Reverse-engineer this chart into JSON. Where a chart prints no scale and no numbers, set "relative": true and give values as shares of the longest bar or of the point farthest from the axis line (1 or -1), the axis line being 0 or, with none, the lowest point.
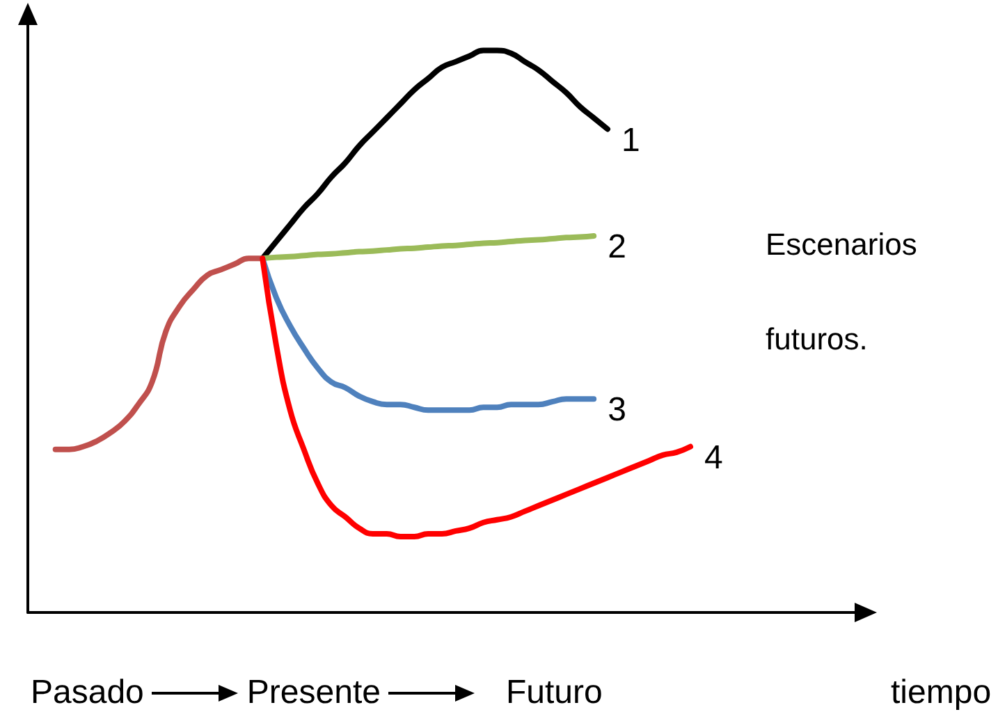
{
  "chart_data": {
    "type": "line",
    "relative": true,
    "xlabel": "tiempo",
    "annotations": [
      "Escenarios futuros.",
      "Pasado",
      "Presente",
      "Futuro"
    ],
    "categories": [
      null,
      null,
      null,
      null,
      null,
      null,
      null,
      null,
      null,
      null,
      null,
      null,
      null,
      null,
      null,
      null,
      null,
      null,
      null,
      null,
      null,
      null,
      null,
      null,
      null,
      null,
      null,
      null,
      null,
      null,
      null,
      null,
      null,
      null,
      null,
      null,
      null,
      null,
      null,
      null,
      null,
      null,
      null,
      null,
      null,
      null,
      null,
      null,
      null,
      null,
      null,
      null,
      null,
      null,
      null,
      null,
      null,
      null,
      null,
      null,
      null
    ],
    "series": [
      {
        "color": "#c0504d",
        "values": [
          null,
          null,
          0.29,
          0.29,
          0.295,
          0.305,
          0.32,
          0.34,
          0.37,
          0.41,
          0.5,
          0.545,
          0.575,
          0.6,
          0.61,
          0.62,
          0.63,
          0.63,
          null,
          null,
          null,
          null,
          null,
          null,
          null,
          null,
          null,
          null,
          null,
          null,
          null,
          null,
          null,
          null,
          null,
          null,
          null,
          null,
          null,
          null,
          null,
          null,
          null,
          null,
          null,
          null,
          null,
          null,
          null,
          null,
          null,
          null,
          null,
          null,
          null,
          null,
          null,
          null,
          null,
          null,
          null
        ]
      },
      {
        "name": "1",
        "color": "#000000",
        "values": [
          null,
          null,
          null,
          null,
          null,
          null,
          null,
          null,
          null,
          null,
          null,
          null,
          null,
          null,
          null,
          null,
          null,
          0.63,
          0.66,
          0.69,
          0.72,
          0.745,
          0.775,
          0.8,
          0.83,
          0.855,
          0.88,
          0.905,
          0.93,
          0.95,
          0.97,
          0.98,
          0.99,
          1,
          1,
          0.995,
          0.98,
          0.965,
          0.945,
          0.925,
          0.9,
          0.88,
          0.86,
          null,
          null,
          null,
          null,
          null,
          null,
          null,
          null,
          null,
          null,
          null,
          null,
          null,
          null,
          null,
          null,
          null,
          null
        ]
      },
      {
        "name": "2",
        "color": "#9bbb59",
        "values": [
          null,
          null,
          null,
          null,
          null,
          null,
          null,
          null,
          null,
          null,
          null,
          null,
          null,
          null,
          null,
          null,
          null,
          0.63,
          0.632,
          0.633,
          0.635,
          0.637,
          0.638,
          0.64,
          0.642,
          0.643,
          0.645,
          0.647,
          0.648,
          0.65,
          0.652,
          0.653,
          0.655,
          0.657,
          0.658,
          0.66,
          0.662,
          0.663,
          0.665,
          0.667,
          0.668,
          0.67,
          null,
          null,
          null,
          null,
          null,
          null,
          null,
          null,
          null,
          null,
          null,
          null,
          null,
          null,
          null,
          null,
          null,
          null,
          null
        ]
      },
      {
        "name": "3",
        "color": "#4f81bd",
        "values": [
          null,
          null,
          null,
          null,
          null,
          null,
          null,
          null,
          null,
          null,
          null,
          null,
          null,
          null,
          null,
          null,
          null,
          0.63,
          0.56,
          0.51,
          0.47,
          0.435,
          0.41,
          0.4,
          0.385,
          0.375,
          0.37,
          0.37,
          0.365,
          0.36,
          0.36,
          0.36,
          0.36,
          0.365,
          0.365,
          0.37,
          0.37,
          0.37,
          0.375,
          0.38,
          0.38,
          0.38,
          null,
          null,
          null,
          null,
          null,
          null,
          null,
          null,
          null,
          null,
          null,
          null,
          null,
          null,
          null,
          null,
          null,
          null,
          null
        ]
      },
      {
        "name": "4",
        "color": "#ff0000",
        "values": [
          null,
          null,
          null,
          null,
          null,
          null,
          null,
          null,
          null,
          null,
          null,
          null,
          null,
          null,
          null,
          null,
          null,
          0.63,
          0.475,
          0.36,
          0.29,
          0.23,
          0.19,
          0.17,
          0.15,
          0.14,
          0.14,
          0.135,
          0.135,
          0.14,
          0.14,
          0.145,
          0.15,
          0.16,
          0.165,
          0.17,
          0.18,
          0.19,
          0.2,
          0.21,
          0.22,
          0.23,
          0.24,
          0.25,
          0.26,
          0.27,
          0.28,
          0.285,
          0.295,
          null,
          null,
          null,
          null,
          null,
          null,
          null,
          null,
          null,
          null,
          null,
          null
        ]
      }
    ],
    "grid": false,
    "legend": false,
    "marker": "none",
    "line_style": "solid"
  }
}
